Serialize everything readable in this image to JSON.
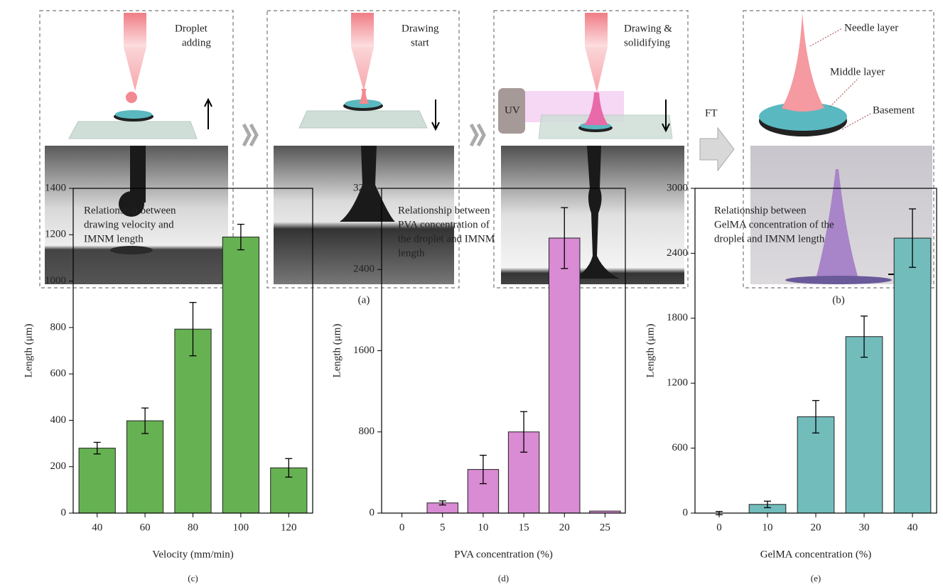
{
  "diagram": {
    "step1": [
      "Droplet",
      "adding"
    ],
    "step2": [
      "Drawing",
      "start"
    ],
    "step3": [
      "Drawing &",
      "solidifying"
    ],
    "uv": "UV",
    "ft": "FT",
    "layers": [
      "Needle layer",
      "Middle layer",
      "Basement"
    ],
    "panel_labels": [
      "(a)",
      "(b)"
    ]
  },
  "chart_data": [
    {
      "type": "bar",
      "panel_label": "(c)",
      "annotation": [
        "Relationship between",
        "drawing velocity and",
        "IMNM length"
      ],
      "ylabel": "Length (μm)",
      "xlabel": "Velocity (mm/min)",
      "categories": [
        "40",
        "60",
        "80",
        "100",
        "120"
      ],
      "values": [
        280,
        398,
        793,
        1190,
        195
      ],
      "errors": [
        25,
        55,
        115,
        55,
        40
      ],
      "color": "#66b152",
      "ylim": [
        0,
        1400
      ],
      "yticks": [
        0,
        200,
        400,
        600,
        800,
        1000,
        1200,
        1400
      ]
    },
    {
      "type": "bar",
      "panel_label": "(d)",
      "annotation": [
        "Relationship between",
        "PVA concentration of",
        "the droplet and IMNM",
        "length"
      ],
      "ylabel": "Length (μm)",
      "xlabel": "PVA concentration (%)",
      "categories": [
        "0",
        "5",
        "10",
        "15",
        "20",
        "25"
      ],
      "values": [
        0,
        100,
        430,
        800,
        2710,
        20
      ],
      "errors": [
        0,
        20,
        140,
        200,
        300,
        0
      ],
      "color": "#d98bd3",
      "ylim": [
        0,
        3200
      ],
      "yticks": [
        0,
        800,
        1600,
        2400,
        3200
      ]
    },
    {
      "type": "bar",
      "panel_label": "(e)",
      "annotation": [
        "Relationship between",
        "GelMA concentration of the",
        "droplet and IMNM length"
      ],
      "ylabel": "Length (μm)",
      "xlabel": "GelMA concentration (%)",
      "categories": [
        "0",
        "10",
        "20",
        "30",
        "40"
      ],
      "values": [
        0,
        80,
        890,
        1630,
        2540
      ],
      "errors": [
        15,
        30,
        150,
        190,
        270
      ],
      "color": "#72bcbc",
      "ylim": [
        0,
        3000
      ],
      "yticks": [
        0,
        600,
        1200,
        1800,
        2400,
        3000
      ]
    }
  ]
}
